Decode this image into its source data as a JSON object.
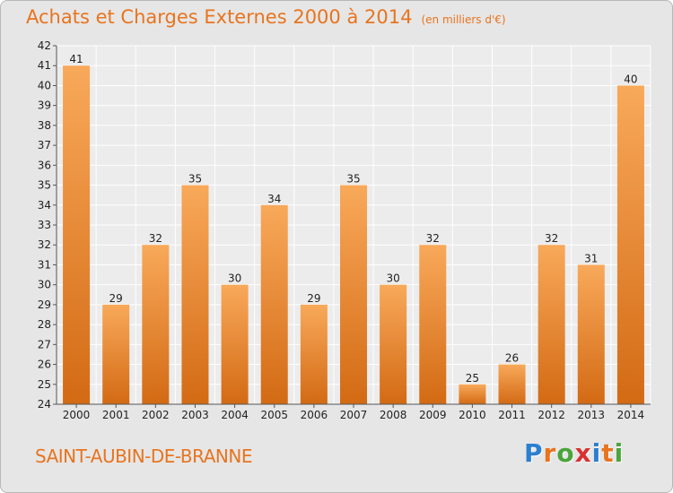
{
  "header": {
    "title": "Achats et Charges Externes 2000 à 2014",
    "unit": "(en milliers d'€)"
  },
  "commune": "SAINT-AUBIN-DE-BRANNE",
  "logo": {
    "letters": [
      "P",
      "r",
      "o",
      "x",
      "i",
      "t",
      "i"
    ],
    "colors": [
      "#2b7fd1",
      "#e8741e",
      "#4aa53a",
      "#d93131",
      "#2b7fd1",
      "#e8741e",
      "#4aa53a"
    ]
  },
  "chart_data": {
    "type": "bar",
    "title": "Achats et Charges Externes 2000 à 2014",
    "xlabel": "",
    "ylabel": "",
    "categories": [
      "2000",
      "2001",
      "2002",
      "2003",
      "2004",
      "2005",
      "2006",
      "2007",
      "2008",
      "2009",
      "2010",
      "2011",
      "2012",
      "2013",
      "2014"
    ],
    "values": [
      41,
      29,
      32,
      35,
      30,
      34,
      29,
      35,
      30,
      32,
      25,
      26,
      32,
      31,
      40
    ],
    "ylim": [
      24,
      42
    ],
    "yticks": [
      24,
      25,
      26,
      27,
      28,
      29,
      30,
      31,
      32,
      33,
      34,
      35,
      36,
      37,
      38,
      39,
      40,
      41,
      42
    ],
    "grid": true,
    "bar_color_light": "#f8a95a",
    "bar_color_dark": "#d36a14"
  }
}
